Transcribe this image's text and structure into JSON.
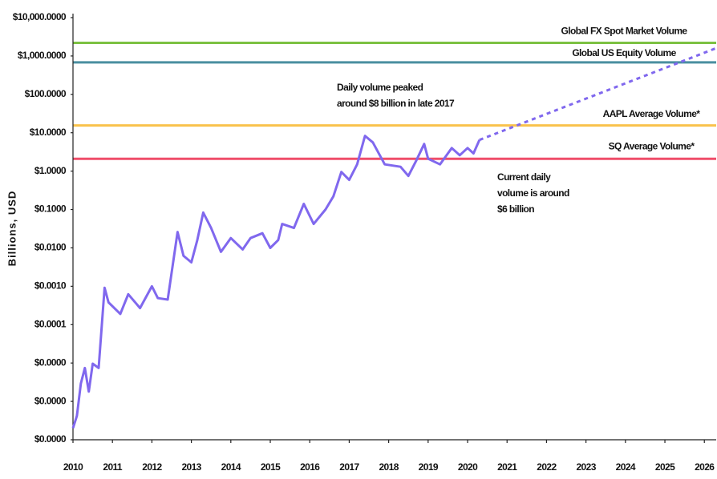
{
  "chart_data": {
    "type": "line",
    "y_label": "Billions, USD",
    "log_scale": true,
    "xlim": [
      2010,
      2026.3
    ],
    "xticks": [
      2010,
      2011,
      2012,
      2013,
      2014,
      2015,
      2016,
      2017,
      2018,
      2019,
      2020,
      2021,
      2022,
      2023,
      2024,
      2025,
      2026
    ],
    "ylim": [
      1e-07,
      10000
    ],
    "yticks": [
      {
        "value": 10000,
        "label": "$10,000.0000"
      },
      {
        "value": 1000,
        "label": "$1,000.0000"
      },
      {
        "value": 100,
        "label": "$100.0000"
      },
      {
        "value": 10,
        "label": "$10.0000"
      },
      {
        "value": 1,
        "label": "$1.0000"
      },
      {
        "value": 0.1,
        "label": "$0.1000"
      },
      {
        "value": 0.01,
        "label": "$0.0100"
      },
      {
        "value": 0.001,
        "label": "$0.0010"
      },
      {
        "value": 0.0001,
        "label": "$0.0001"
      },
      {
        "value": 1e-05,
        "label": "$0.0000"
      },
      {
        "value": 1e-06,
        "label": "$0.0000"
      },
      {
        "value": 1e-07,
        "label": "$0.0000"
      }
    ],
    "series": [
      {
        "color": "#8068ee",
        "dashed": false,
        "x": [
          2010.0,
          2010.1,
          2010.2,
          2010.3,
          2010.4,
          2010.5,
          2010.65,
          2010.8,
          2010.9,
          2011.2,
          2011.4,
          2011.7,
          2012.0,
          2012.15,
          2012.4,
          2012.65,
          2012.8,
          2013.0,
          2013.15,
          2013.3,
          2013.5,
          2013.75,
          2014.0,
          2014.3,
          2014.5,
          2014.8,
          2015.0,
          2015.2,
          2015.3,
          2015.6,
          2015.85,
          2016.1,
          2016.4,
          2016.6,
          2016.8,
          2017.0,
          2017.2,
          2017.4,
          2017.6,
          2017.9,
          2018.3,
          2018.5,
          2018.7,
          2018.9,
          2019.0,
          2019.3,
          2019.6,
          2019.8,
          2020.0,
          2020.15,
          2020.3
        ],
        "values": [
          2e-07,
          4.2e-07,
          2.9e-06,
          7.4e-06,
          1.8e-06,
          9.6e-06,
          7.4e-06,
          0.00091,
          0.00038,
          0.00019,
          0.00062,
          0.00027,
          0.001,
          0.00049,
          0.00045,
          0.026,
          0.0062,
          0.0042,
          0.016,
          0.083,
          0.033,
          0.0079,
          0.018,
          0.0091,
          0.018,
          0.024,
          0.01,
          0.016,
          0.042,
          0.033,
          0.14,
          0.042,
          0.1,
          0.22,
          0.95,
          0.59,
          1.5,
          8.3,
          5.6,
          1.5,
          1.3,
          0.75,
          1.9,
          5.1,
          2.1,
          1.5,
          4,
          2.6,
          4,
          2.9,
          6.5
        ]
      },
      {
        "color": "#8068ee",
        "dashed": true,
        "x": [
          2020.3,
          2026.3
        ],
        "values": [
          6.5,
          1600
        ]
      }
    ],
    "reference_lines": [
      {
        "label": "Global FX Spot Market Volume",
        "value": 2200,
        "color": "#7cc142"
      },
      {
        "label": "Global US Equity Volume",
        "value": 680,
        "color": "#4a8fa0"
      },
      {
        "label": "AAPL Average Volume*",
        "value": 15.5,
        "color": "#f9c24c"
      },
      {
        "label": "SQ Average Volume*",
        "value": 2.1,
        "color": "#ef4e6a"
      }
    ],
    "annotations": [
      {
        "lines": [
          "Daily volume peaked",
          "around $8 billion in late 2017"
        ]
      },
      {
        "lines": [
          "Current daily",
          "volume is around",
          "$6 billion"
        ]
      }
    ]
  }
}
